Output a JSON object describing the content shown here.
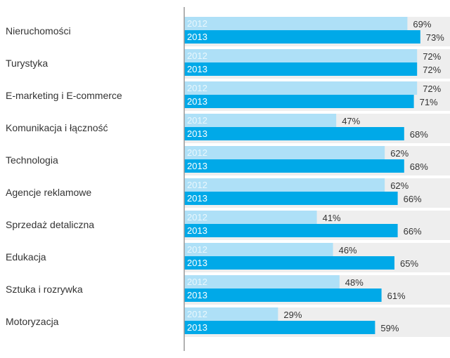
{
  "chart_data": {
    "type": "bar",
    "orientation": "horizontal",
    "categories": [
      "Nieruchomości",
      "Turystyka",
      "E-marketing i E-commerce",
      "Komunikacja i łączność",
      "Technologia",
      "Agencje reklamowe",
      "Sprzedaż detaliczna",
      "Edukacja",
      "Sztuka i rozrywka",
      "Motoryzacja"
    ],
    "series": [
      {
        "name": "2012",
        "values": [
          69,
          72,
          72,
          47,
          62,
          62,
          41,
          46,
          48,
          29
        ],
        "color": "#aee0f7",
        "label_color": "#e9f7fd"
      },
      {
        "name": "2013",
        "values": [
          73,
          72,
          71,
          68,
          68,
          66,
          66,
          65,
          61,
          59
        ],
        "color": "#00a9e8",
        "label_color": "#ffffff"
      }
    ],
    "value_suffix": "%",
    "xlim": [
      0,
      100
    ],
    "grid": false,
    "legend": "none",
    "stripe_color": "#eeeeee",
    "axis_color": "#999999"
  }
}
